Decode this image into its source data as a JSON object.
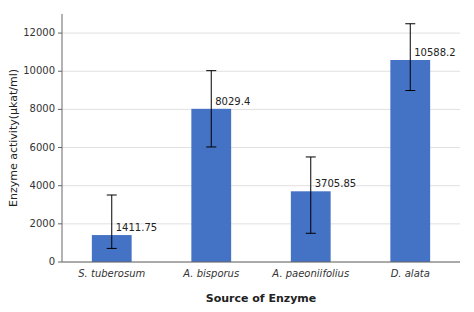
{
  "chart_data": {
    "type": "bar",
    "categories": [
      "S. tuberosum",
      "A. bisporus",
      "A. paeoniifolius",
      "D. alata"
    ],
    "values": [
      1411.75,
      8029.4,
      3705.85,
      10588.2
    ],
    "yerr_low": [
      700,
      2000,
      2200,
      1600
    ],
    "yerr_high": [
      2100,
      2000,
      1800,
      1900
    ],
    "color": "#4472C4",
    "xlabel": "Source of Enzyme",
    "ylabel": "Enzyme activity(μkat/ml)",
    "ylim": [
      0,
      13000
    ],
    "yticks": [
      0,
      2000,
      4000,
      6000,
      8000,
      10000,
      12000
    ],
    "grid": true,
    "data_labels": true
  }
}
